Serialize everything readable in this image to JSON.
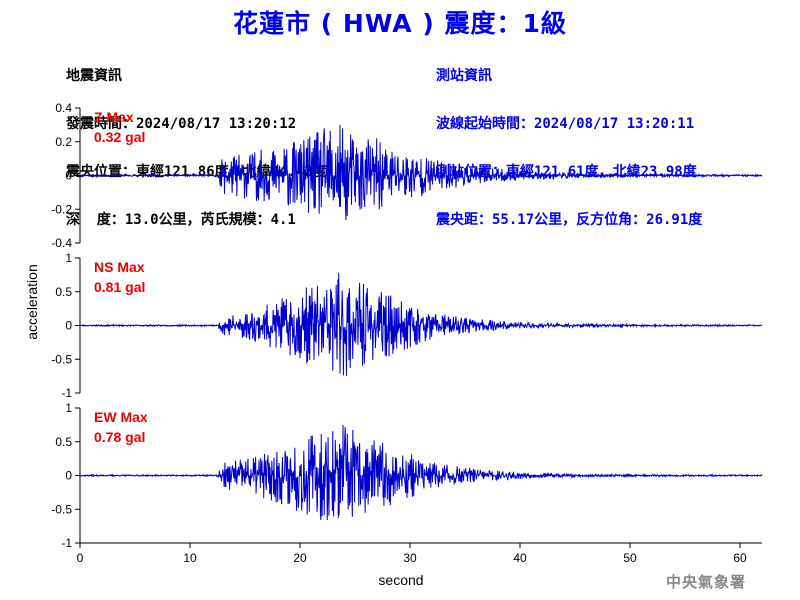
{
  "title": "花蓮市 ( HWA ) 震度：1級",
  "quake_info": {
    "header": "地震資訊",
    "time": "發震時間：2024/08/17 13:20:12",
    "location": "震央位置：東經121.86度，北緯24.42度",
    "depth_magnitude": "深  度：13.0公里，芮氏規模：4.1"
  },
  "station_info": {
    "header": "測站資訊",
    "wave_start": "波線起始時間：2024/08/17 13:20:11",
    "location": "測站位置：東經121.61度，北緯23.98度",
    "distance_azimuth": "震央距：55.17公里，反方位角：26.91度"
  },
  "agency": "中央氣象署",
  "colors": {
    "title": "#0000ee",
    "trace": "#0000cc",
    "max_label": "#ee0000",
    "axes": "#000000"
  },
  "chart_data": {
    "type": "line",
    "xlabel": "second",
    "ylabel": "acceleration",
    "xlim": [
      0,
      62
    ],
    "xticks": [
      0,
      10,
      20,
      30,
      40,
      50,
      60
    ],
    "panels": [
      {
        "component": "Z",
        "max_label": "Z Max",
        "max_value_label": "0.32 gal",
        "max_gal": 0.32,
        "ylim": [
          -0.4,
          0.4
        ],
        "yticks": [
          -0.4,
          -0.2,
          0,
          0.2,
          0.4
        ],
        "ytick_labels": [
          "-0.4",
          "-0.2",
          "0",
          "0.2",
          "0.4"
        ],
        "envelope": {
          "x": [
            0,
            12.5,
            13,
            15,
            18,
            21,
            23,
            25,
            28,
            32,
            36,
            40,
            45,
            50,
            62
          ],
          "amp": [
            0.005,
            0.005,
            0.12,
            0.14,
            0.17,
            0.24,
            0.32,
            0.26,
            0.2,
            0.1,
            0.05,
            0.03,
            0.015,
            0.008,
            0.005
          ]
        },
        "seed": 11
      },
      {
        "component": "NS",
        "max_label": "NS Max",
        "max_value_label": "0.81 gal",
        "max_gal": 0.81,
        "ylim": [
          -1,
          1
        ],
        "yticks": [
          -1,
          -0.5,
          0,
          0.5,
          1
        ],
        "ytick_labels": [
          "-1",
          "-0.5",
          "0",
          "0.5",
          "1"
        ],
        "envelope": {
          "x": [
            0,
            12.5,
            13,
            16,
            19,
            21,
            23.5,
            26,
            29,
            32,
            36,
            40,
            45,
            50,
            62
          ],
          "amp": [
            0.01,
            0.01,
            0.15,
            0.25,
            0.45,
            0.6,
            0.81,
            0.6,
            0.4,
            0.2,
            0.1,
            0.05,
            0.025,
            0.015,
            0.01
          ]
        },
        "seed": 23
      },
      {
        "component": "EW",
        "max_label": "EW Max",
        "max_value_label": "0.78 gal",
        "max_gal": 0.78,
        "ylim": [
          -1,
          1
        ],
        "yticks": [
          -1,
          -0.5,
          0,
          0.5,
          1
        ],
        "ytick_labels": [
          "-1",
          "-0.5",
          "0",
          "0.5",
          "1"
        ],
        "envelope": {
          "x": [
            0,
            12.5,
            13,
            16,
            19,
            21,
            23.5,
            26,
            29,
            32,
            36,
            40,
            45,
            50,
            62
          ],
          "amp": [
            0.01,
            0.01,
            0.2,
            0.3,
            0.5,
            0.62,
            0.78,
            0.6,
            0.4,
            0.2,
            0.1,
            0.05,
            0.025,
            0.015,
            0.01
          ]
        },
        "seed": 37
      }
    ]
  }
}
